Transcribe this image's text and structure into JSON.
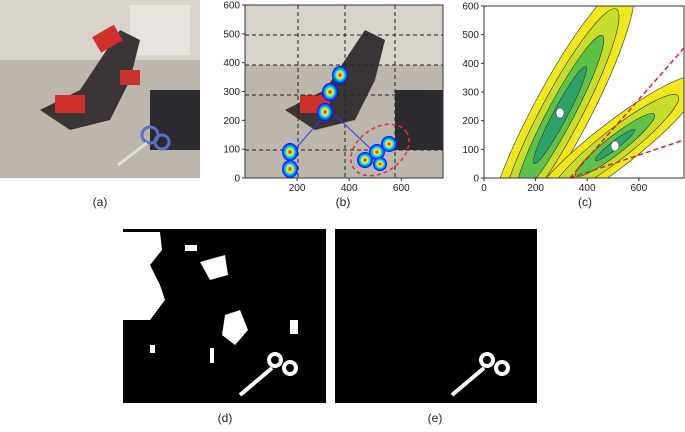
{
  "panels": [
    {
      "label": "(a)"
    },
    {
      "label": "(b)",
      "xlim": [
        0,
        760
      ],
      "ylim": [
        0,
        600
      ],
      "xticks": [
        200,
        400,
        600
      ],
      "yticks": [
        0,
        100,
        200,
        300,
        400,
        500,
        600
      ]
    },
    {
      "label": "(c)",
      "xlim": [
        0,
        775
      ],
      "ylim": [
        0,
        600
      ],
      "xticks": [
        0,
        200,
        400,
        600
      ],
      "yticks": [
        0,
        100,
        200,
        300,
        400,
        500,
        600
      ]
    },
    {
      "label": "(d)"
    },
    {
      "label": "(e)"
    }
  ]
}
